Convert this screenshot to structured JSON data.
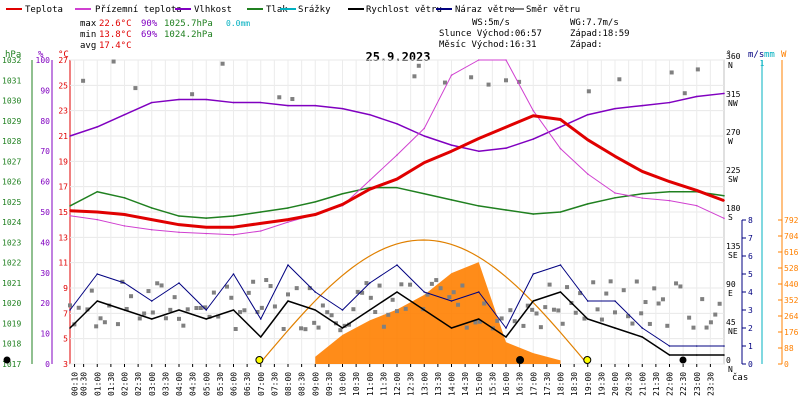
{
  "chart_data": {
    "type": "line",
    "title": "25.9.2023",
    "xlabel": "čas",
    "legend": {
      "placement": "top",
      "items": [
        {
          "name": "Teplota",
          "color": "#e00000"
        },
        {
          "name": "Přízemní teplota",
          "color": "#d040d0"
        },
        {
          "name": "Vlhkost",
          "color": "#8000c0"
        },
        {
          "name": "Tlak",
          "color": "#208020"
        },
        {
          "name": "Srážky",
          "color": "#00b0c0"
        },
        {
          "name": "Rychlost větru",
          "color": "#000000"
        },
        {
          "name": "Náraz větru",
          "color": "#000080"
        },
        {
          "name": "Směr větru",
          "color": "#808080"
        }
      ]
    },
    "stats": {
      "max_label": "max",
      "max_temp": "22.6°C",
      "max_hum": "90%",
      "max_press": "1025.7hPa",
      "max_rain": "0.0mm",
      "min_label": "min",
      "min_temp": "13.8°C",
      "min_hum": "69%",
      "min_press": "1024.2hPa",
      "avg_label": "avg",
      "avg_temp": "17.4°C"
    },
    "info": {
      "ws": "WS:5m/s",
      "wg": "WG:7.7m/s",
      "sun": "Slunce Východ:06:57",
      "sun_set": "Západ:18:59",
      "moon": "Měsíc  Východ:16:31",
      "moon_set": "Západ:"
    },
    "axes": {
      "pressure": {
        "unit": "hPa",
        "range": [
          1017,
          1032
        ],
        "ticks": [
          1017,
          1018,
          1019,
          1020,
          1021,
          1022,
          1023,
          1024,
          1025,
          1026,
          1027,
          1028,
          1029,
          1030,
          1031,
          1032
        ]
      },
      "humidity": {
        "unit": "%",
        "range": [
          0,
          100
        ],
        "ticks": [
          0,
          10,
          20,
          30,
          40,
          50,
          60,
          70,
          80,
          90,
          100
        ]
      },
      "temperature": {
        "unit": "°C",
        "range": [
          3,
          27
        ],
        "ticks": [
          3,
          5,
          7,
          9,
          11,
          13,
          15,
          17,
          19,
          21,
          23,
          25,
          27
        ]
      },
      "direction": {
        "unit": "°",
        "range": [
          0,
          360
        ],
        "ticks": [
          {
            "v": 0,
            "t": "0",
            "c": "N"
          },
          {
            "v": 45,
            "t": "45",
            "c": "NE"
          },
          {
            "v": 90,
            "t": "90",
            "c": "E"
          },
          {
            "v": 135,
            "t": "135",
            "c": "SE"
          },
          {
            "v": 180,
            "t": "180",
            "c": "S"
          },
          {
            "v": 225,
            "t": "225",
            "c": "SW"
          },
          {
            "v": 270,
            "t": "270",
            "c": "W"
          },
          {
            "v": 315,
            "t": "315",
            "c": "NW"
          },
          {
            "v": 360,
            "t": "360",
            "c": "N"
          }
        ]
      },
      "wind": {
        "unit": "m/s",
        "range": [
          0,
          8
        ],
        "ticks": [
          0,
          1,
          2,
          3,
          4,
          5,
          6,
          7,
          8
        ]
      },
      "rain": {
        "unit": "mm",
        "top_tick": "1"
      },
      "radiation": {
        "unit": "W",
        "range": [
          0,
          792
        ],
        "ticks": [
          0,
          88,
          176,
          264,
          352,
          440,
          528,
          616,
          704,
          792
        ]
      },
      "time_ticks": [
        "00:10",
        "00:30",
        "01:00",
        "01:30",
        "02:00",
        "02:30",
        "03:00",
        "03:30",
        "04:00",
        "04:30",
        "05:00",
        "05:30",
        "06:00",
        "06:30",
        "07:00",
        "07:30",
        "08:00",
        "08:30",
        "09:00",
        "09:30",
        "10:00",
        "10:30",
        "11:00",
        "11:30",
        "12:00",
        "12:30",
        "13:00",
        "13:30",
        "14:00",
        "14:30",
        "15:00",
        "15:30",
        "16:00",
        "16:30",
        "17:00",
        "17:30",
        "18:00",
        "18:30",
        "19:00",
        "19:30",
        "20:00",
        "20:30",
        "21:00",
        "21:30",
        "22:00",
        "22:30",
        "23:00",
        "23:30"
      ]
    },
    "series": [
      {
        "name": "Teplota",
        "unit": "°C",
        "x": [
          0,
          1,
          2,
          3,
          4,
          5,
          6,
          7,
          8,
          9,
          10,
          11,
          12,
          13,
          14,
          15,
          16,
          17,
          18,
          19,
          20,
          21,
          22,
          23,
          24
        ],
        "y": [
          15.1,
          15.0,
          14.8,
          14.4,
          14.0,
          13.8,
          13.8,
          14.1,
          14.4,
          14.8,
          15.6,
          16.8,
          17.6,
          18.9,
          19.8,
          20.8,
          21.7,
          22.6,
          22.3,
          20.7,
          19.4,
          18.2,
          17.4,
          16.7,
          15.9
        ]
      },
      {
        "name": "Přízemní teplota",
        "unit": "°C",
        "x": [
          0,
          1,
          2,
          3,
          4,
          5,
          6,
          7,
          8,
          9,
          10,
          11,
          12,
          13,
          14,
          15,
          16,
          17,
          18,
          19,
          20,
          21,
          22,
          23,
          24
        ],
        "y": [
          14.7,
          14.4,
          13.9,
          13.6,
          13.4,
          13.3,
          13.2,
          13.5,
          14.2,
          14.8,
          15.5,
          17.5,
          19.5,
          21.6,
          25.8,
          27.0,
          27.0,
          23.0,
          20.0,
          18.0,
          16.5,
          16.1,
          15.9,
          15.5,
          14.5
        ]
      },
      {
        "name": "Vlhkost",
        "unit": "%",
        "x": [
          0,
          1,
          2,
          3,
          4,
          5,
          6,
          7,
          8,
          9,
          10,
          11,
          12,
          13,
          14,
          15,
          16,
          17,
          18,
          19,
          20,
          21,
          22,
          23,
          24
        ],
        "y": [
          75,
          78,
          82,
          86,
          87,
          87,
          86,
          86,
          85,
          85,
          84,
          82,
          79,
          75,
          72,
          70,
          71,
          74,
          78,
          82,
          84,
          85,
          86,
          88,
          89
        ]
      },
      {
        "name": "Tlak",
        "unit": "hPa",
        "x": [
          0,
          1,
          2,
          3,
          4,
          5,
          6,
          7,
          8,
          9,
          10,
          11,
          12,
          13,
          14,
          15,
          16,
          17,
          18,
          19,
          20,
          21,
          22,
          23,
          24
        ],
        "y": [
          1024.8,
          1025.5,
          1025.2,
          1024.7,
          1024.3,
          1024.2,
          1024.3,
          1024.5,
          1024.7,
          1025.0,
          1025.4,
          1025.7,
          1025.7,
          1025.4,
          1025.1,
          1024.8,
          1024.6,
          1024.4,
          1024.5,
          1024.9,
          1025.2,
          1025.4,
          1025.5,
          1025.5,
          1025.3
        ]
      },
      {
        "name": "Rychlost větru",
        "unit": "m/s",
        "x": [
          0,
          1,
          2,
          3,
          4,
          5,
          6,
          7,
          8,
          9,
          10,
          11,
          12,
          13,
          14,
          15,
          16,
          17,
          18,
          19,
          20,
          21,
          22,
          23,
          24
        ],
        "y": [
          2.0,
          3.5,
          3.0,
          2.5,
          3.0,
          2.5,
          3.0,
          1.5,
          3.5,
          3.0,
          2.0,
          3.0,
          4.0,
          3.0,
          2.0,
          2.5,
          1.5,
          3.5,
          4.0,
          2.5,
          2.0,
          1.5,
          0.5,
          0.5,
          0.5
        ]
      },
      {
        "name": "Náraz větru",
        "unit": "m/s",
        "x": [
          0,
          1,
          2,
          3,
          4,
          5,
          6,
          7,
          8,
          9,
          10,
          11,
          12,
          13,
          14,
          15,
          16,
          17,
          18,
          19,
          20,
          21,
          22,
          23,
          24
        ],
        "y": [
          3.0,
          5.0,
          4.5,
          3.5,
          4.5,
          3.0,
          5.0,
          2.5,
          5.5,
          4.0,
          3.0,
          4.5,
          5.5,
          4.0,
          3.5,
          4.0,
          2.0,
          5.0,
          5.5,
          3.5,
          3.5,
          2.0,
          1.0,
          1.0,
          1.0
        ]
      },
      {
        "name": "Sluneční záření",
        "unit": "W",
        "x": [
          9,
          10,
          11,
          12,
          13,
          14,
          15,
          16,
          17,
          18
        ],
        "y": [
          40,
          160,
          240,
          300,
          380,
          500,
          560,
          120,
          60,
          20
        ]
      }
    ],
    "colors": {
      "temp": "#e00000",
      "ground": "#d040d0",
      "humidity": "#8000c0",
      "pressure": "#208020",
      "rain": "#00b0c0",
      "wind": "#000000",
      "gust": "#000080",
      "direction": "#808080",
      "sun": "#e08000",
      "radiation": "#ff8000"
    }
  }
}
